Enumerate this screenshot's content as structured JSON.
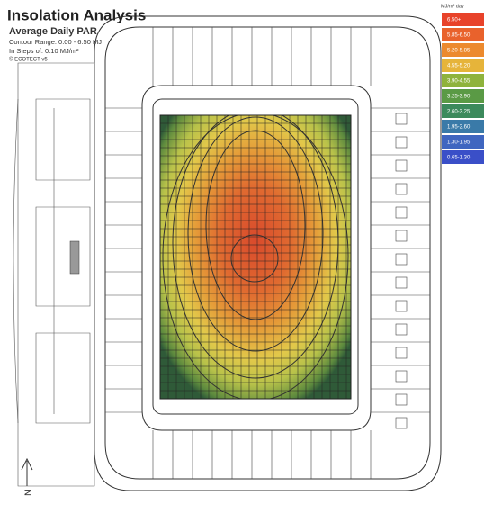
{
  "header": {
    "title": "Insolation Analysis",
    "subtitle": "Average Daily PAR",
    "contour_range": "Contour Range: 0.00 - 6.50 MJ",
    "steps": "In Steps of: 0.10 MJ/m²",
    "version": "© ECOTECT v5"
  },
  "legend": {
    "unit": "MJ/m² day",
    "items": [
      {
        "label": "6.50+",
        "color": "#e8432a"
      },
      {
        "label": "5.85-6.50",
        "color": "#e9622c"
      },
      {
        "label": "5.20-5.85",
        "color": "#ec8a2e"
      },
      {
        "label": "4.55-5.20",
        "color": "#e6b43a"
      },
      {
        "label": "3.90-4.55",
        "color": "#8fb33c"
      },
      {
        "label": "3.25-3.90",
        "color": "#5a9a45"
      },
      {
        "label": "2.60-3.25",
        "color": "#3c8a5c"
      },
      {
        "label": "1.95-2.60",
        "color": "#3a7aa8"
      },
      {
        "label": "1.30-1.95",
        "color": "#3f66c0"
      },
      {
        "label": "0.65-1.30",
        "color": "#3a4fc8"
      }
    ]
  },
  "compass": {
    "label": "N"
  }
}
